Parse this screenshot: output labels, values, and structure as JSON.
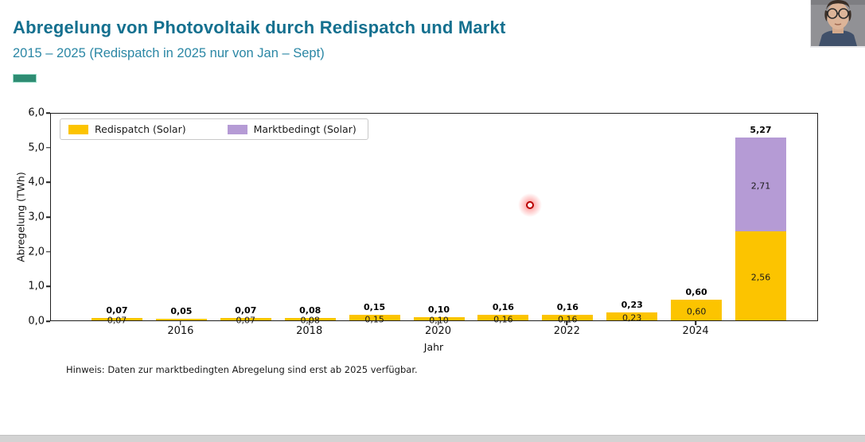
{
  "header": {
    "title": "Abregelung von Photovoltaik durch Redispatch und Markt",
    "subtitle": "2015 – 2025 (Redispatch in 2025 nur von Jan – Sept)"
  },
  "chart_data": {
    "type": "bar",
    "stacked": true,
    "title": "",
    "xlabel": "Jahr",
    "ylabel": "Abregelung (TWh)",
    "ylim": [
      0,
      6
    ],
    "grid": false,
    "legend_position": "upper left",
    "categories": [
      "2015",
      "2016",
      "2017",
      "2018",
      "2019",
      "2020",
      "2021",
      "2022",
      "2023",
      "2024",
      "2025"
    ],
    "series": [
      {
        "name": "Redispatch (Solar)",
        "color": "#fcc400",
        "values": [
          0.07,
          0.05,
          0.07,
          0.08,
          0.15,
          0.1,
          0.16,
          0.16,
          0.23,
          0.6,
          2.56
        ],
        "segment_labels": [
          "0,07",
          null,
          "0,07",
          "0,08",
          "0,15",
          "0,10",
          "0,16",
          "0,16",
          "0,23",
          "0,60",
          "2,56"
        ]
      },
      {
        "name": "Marktbedingt (Solar)",
        "color": "#b59bd5",
        "values": [
          0,
          0,
          0,
          0,
          0,
          0,
          0,
          0,
          0,
          0,
          2.71
        ],
        "segment_labels": [
          null,
          null,
          null,
          null,
          null,
          null,
          null,
          null,
          null,
          null,
          "2,71"
        ]
      }
    ],
    "total_labels": [
      "0,07",
      "0,05",
      "0,07",
      "0,08",
      "0,15",
      "0,10",
      "0,16",
      "0,16",
      "0,23",
      "0,60",
      "5,27"
    ],
    "y_ticks": [
      {
        "value": 0,
        "label": "0,0"
      },
      {
        "value": 1,
        "label": "1,0"
      },
      {
        "value": 2,
        "label": "2,0"
      },
      {
        "value": 3,
        "label": "3,0"
      },
      {
        "value": 4,
        "label": "4,0"
      },
      {
        "value": 5,
        "label": "5,0"
      },
      {
        "value": 6,
        "label": "6,0"
      }
    ],
    "x_ticks": [
      {
        "index": 1,
        "label": "2016"
      },
      {
        "index": 3,
        "label": "2018"
      },
      {
        "index": 5,
        "label": "2020"
      },
      {
        "index": 7,
        "label": "2022"
      },
      {
        "index": 9,
        "label": "2024"
      }
    ]
  },
  "footnote": "Hinweis: Daten zur marktbedingten Abregelung sind erst ab 2025 verfügbar.",
  "colors": {
    "title": "#14708f",
    "accent_dash": "#2f8c73",
    "redispatch": "#fcc400",
    "marktbedingt": "#b59bd5",
    "laser": "#b80000"
  }
}
